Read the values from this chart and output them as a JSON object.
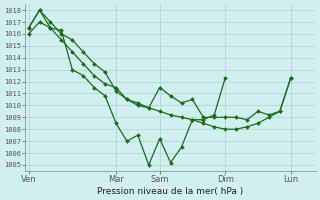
{
  "background_color": "#cff0ee",
  "grid_color": "#b8dbd9",
  "line_color": "#1a6b1a",
  "marker_color": "#1a6b1a",
  "xlabel": "Pression niveau de la mer( hPa )",
  "ylim": [
    1004.5,
    1018.5
  ],
  "yticks": [
    1005,
    1006,
    1007,
    1008,
    1009,
    1010,
    1011,
    1012,
    1013,
    1014,
    1015,
    1016,
    1017,
    1018
  ],
  "xtick_labels": [
    "Ven",
    "Mar",
    "Sam",
    "Dim",
    "Lun"
  ],
  "xtick_positions": [
    0,
    8,
    12,
    18,
    24
  ],
  "xlim": [
    -0.3,
    26.3
  ],
  "line1_x": [
    0,
    1,
    2,
    3,
    4,
    5,
    6,
    7,
    8,
    9,
    10,
    11,
    12,
    13,
    14,
    15,
    16,
    17,
    18,
    19,
    20,
    21,
    22,
    23,
    24
  ],
  "line1_y": [
    1016.0,
    1017.0,
    1016.5,
    1015.5,
    1014.5,
    1013.5,
    1012.5,
    1011.8,
    1011.5,
    1010.5,
    1010.0,
    1009.8,
    1009.5,
    1009.2,
    1009.0,
    1008.8,
    1008.5,
    1008.2,
    1008.0,
    1008.0,
    1008.2,
    1008.5,
    1009.0,
    1009.5,
    1012.3
  ],
  "line2_x": [
    0,
    1,
    2,
    3,
    4,
    5,
    6,
    7,
    8,
    9,
    10,
    11,
    12,
    13,
    14,
    15,
    16,
    17,
    18,
    19,
    20,
    21,
    22,
    23,
    24
  ],
  "line2_y": [
    1016.5,
    1018.0,
    1017.0,
    1016.0,
    1015.5,
    1014.5,
    1013.5,
    1012.8,
    1011.2,
    1010.5,
    1010.2,
    1009.8,
    1011.5,
    1010.8,
    1010.2,
    1010.5,
    1009.0,
    1009.0,
    1009.0,
    1009.0,
    1008.8,
    1009.5,
    1009.2,
    1009.5,
    1012.3
  ],
  "line3_x": [
    0,
    1,
    2,
    3,
    4,
    5,
    6,
    7,
    8,
    9,
    10,
    11,
    12,
    13,
    14,
    15,
    16,
    17,
    18
  ],
  "line3_y": [
    1016.5,
    1018.0,
    1016.5,
    1016.3,
    1013.0,
    1012.5,
    1011.5,
    1010.8,
    1008.5,
    1007.0,
    1007.5,
    1005.0,
    1007.2,
    1005.2,
    1006.5,
    1008.8,
    1008.8,
    1009.2,
    1012.3
  ]
}
